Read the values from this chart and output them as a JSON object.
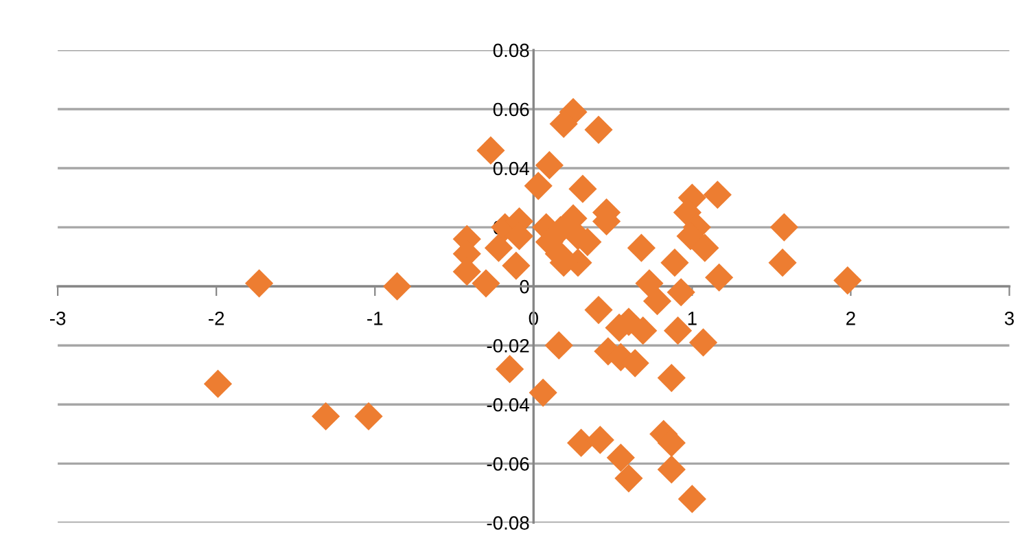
{
  "chart_data": {
    "type": "scatter",
    "marker": "diamond",
    "grid": "y",
    "xlim": [
      -3,
      3
    ],
    "ylim": [
      -0.08,
      0.08
    ],
    "xticks": [
      -3,
      -2,
      -1,
      0,
      1,
      2,
      3
    ],
    "yticks": [
      -0.08,
      -0.06,
      -0.04,
      -0.02,
      0,
      0.02,
      0.04,
      0.06,
      0.08
    ],
    "series": [
      {
        "color": "#ed7d31",
        "x": [
          -1.73,
          -0.86,
          -1.99,
          -1.31,
          -1.04,
          -0.15,
          0.16,
          0.06,
          0.41,
          0.54,
          0.6,
          0.69,
          0.47,
          0.55,
          0.64,
          0.91,
          1.07,
          0.87,
          0.3,
          0.42,
          0.55,
          0.6,
          0.82,
          0.87,
          0.87,
          1.0,
          0.73,
          0.78,
          0.93,
          1.17,
          1.98,
          0.25,
          0.19,
          0.41,
          -0.27,
          0.1,
          0.03,
          0.31,
          0.46,
          0.46,
          0.68,
          0.89,
          1.0,
          1.16,
          0.97,
          1.03,
          0.99,
          1.08,
          1.58,
          1.57,
          -0.42,
          -0.42,
          -0.42,
          -0.3,
          -0.22,
          -0.18,
          -0.11,
          -0.09,
          -0.09,
          0.08,
          0.1,
          0.16,
          0.17,
          0.25,
          0.28,
          0.34,
          0.28,
          0.19
        ],
        "values": [
          0.001,
          0,
          -0.033,
          -0.044,
          -0.044,
          -0.028,
          -0.02,
          -0.036,
          -0.008,
          -0.014,
          -0.012,
          -0.015,
          -0.022,
          -0.024,
          -0.026,
          -0.015,
          -0.019,
          -0.031,
          -0.053,
          -0.052,
          -0.058,
          -0.065,
          -0.05,
          -0.053,
          -0.062,
          -0.072,
          0.001,
          -0.005,
          -0.002,
          0.003,
          0.002,
          0.059,
          0.055,
          0.053,
          0.046,
          0.041,
          0.034,
          0.033,
          0.025,
          0.022,
          0.013,
          0.008,
          0.03,
          0.031,
          0.025,
          0.02,
          0.017,
          0.013,
          0.02,
          0.008,
          0.016,
          0.011,
          0.005,
          0.001,
          0.013,
          0.02,
          0.007,
          0.022,
          0.017,
          0.02,
          0.015,
          0.011,
          0.019,
          0.023,
          0.017,
          0.015,
          0.008,
          0.008
        ]
      }
    ]
  }
}
